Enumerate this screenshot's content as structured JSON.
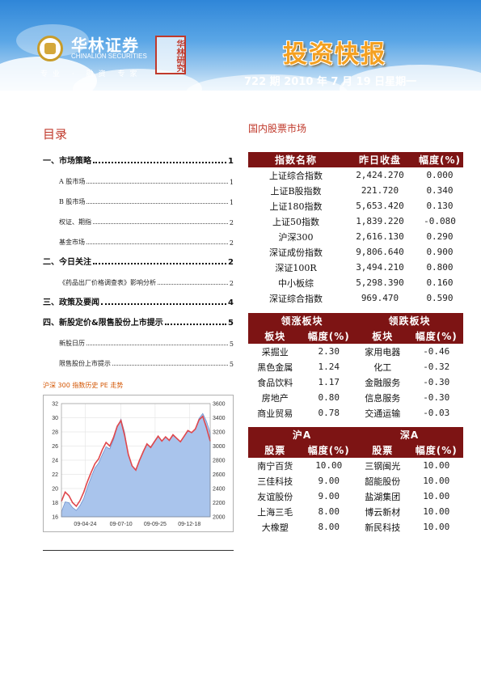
{
  "header": {
    "company_cn": "华林证券",
    "company_en": "CHINALION SECURITIES",
    "slogan": "专业 · 融资 专家",
    "seal_text": "华林研究",
    "publication_title": "投资快报",
    "issue_line": "722 期  2010 年 7 月 19 日星期一"
  },
  "toc": {
    "title": "目录",
    "entries": [
      {
        "label": "一、市场策略",
        "page": "1",
        "level": "main"
      },
      {
        "label": "A 股市场",
        "page": "1",
        "level": "sub"
      },
      {
        "label": "B 股市场",
        "page": "1",
        "level": "sub"
      },
      {
        "label": "权证、期指",
        "page": "2",
        "level": "sub"
      },
      {
        "label": "基金市场",
        "page": "2",
        "level": "sub"
      },
      {
        "label": "二、今日关注",
        "page": "2",
        "level": "main"
      },
      {
        "label": "《药品出厂价格调查表》影响分析",
        "page": "2",
        "level": "sub"
      },
      {
        "label": "三、政策及要闻",
        "page": "4",
        "level": "main"
      },
      {
        "label": "四、新股定价&限售股份上市提示",
        "page": "5",
        "level": "main"
      },
      {
        "label": "新股日历",
        "page": "5",
        "level": "sub"
      },
      {
        "label": "限售股份上市提示",
        "page": "5",
        "level": "sub"
      }
    ]
  },
  "chart_section": {
    "title": "沪深 300 指数历史 PE 走势"
  },
  "chart_data": {
    "type": "line",
    "title": "沪深 300 指数历史 PE 走势",
    "x_tick_labels": [
      "09-04-24",
      "09-07-10",
      "09-09-25",
      "09-12-18"
    ],
    "left_axis": {
      "ylim": [
        16,
        32
      ],
      "ticks": [
        16,
        18,
        20,
        22,
        24,
        26,
        28,
        30,
        32
      ]
    },
    "right_axis": {
      "ylim": [
        2000,
        3600
      ],
      "ticks": [
        2000,
        2200,
        2400,
        2600,
        2800,
        3000,
        3200,
        3400,
        3600
      ]
    },
    "series": [
      {
        "axis": "left",
        "style": "line",
        "color": "#e0474c",
        "values": [
          18.2,
          19.5,
          19.0,
          18.0,
          17.5,
          18.3,
          19.5,
          21.0,
          22.3,
          23.5,
          24.2,
          25.5,
          26.5,
          26.0,
          27.2,
          28.8,
          29.6,
          27.5,
          24.8,
          23.2,
          22.6,
          24.0,
          25.2,
          26.3,
          25.8,
          26.6,
          27.4,
          26.7,
          27.3,
          26.8,
          27.6,
          27.1,
          26.6,
          27.4,
          28.2,
          27.9,
          28.4,
          29.7,
          30.2,
          28.6,
          26.7
        ]
      },
      {
        "axis": "right",
        "style": "area",
        "color": "#a9c4ec",
        "values": [
          2070,
          2210,
          2200,
          2130,
          2090,
          2160,
          2260,
          2420,
          2560,
          2690,
          2760,
          2880,
          2990,
          2960,
          3090,
          3270,
          3380,
          3190,
          2870,
          2720,
          2660,
          2800,
          2930,
          3030,
          2990,
          3070,
          3140,
          3070,
          3130,
          3080,
          3150,
          3110,
          3060,
          3140,
          3210,
          3190,
          3240,
          3390,
          3460,
          3350,
          3190
        ]
      }
    ],
    "grid": true
  },
  "market": {
    "title": "国内股票市场",
    "index_table": {
      "headers": [
        "指数名称",
        "昨日收盘",
        "幅度(%)"
      ],
      "rows": [
        [
          "上证综合指数",
          "2,424.270",
          "0.000"
        ],
        [
          "上证B股指数",
          "221.720",
          "0.340"
        ],
        [
          "上证180指数",
          "5,653.420",
          "0.130"
        ],
        [
          "上证50指数",
          "1,839.220",
          "-0.080"
        ],
        [
          "沪深300",
          "2,616.130",
          "0.290"
        ],
        [
          "深证成份指数",
          "9,806.640",
          "0.900"
        ],
        [
          "深证100R",
          "3,494.210",
          "0.800"
        ],
        [
          "中小板综",
          "5,298.390",
          "0.160"
        ],
        [
          "深证综合指数",
          "969.470",
          "0.590"
        ]
      ]
    },
    "sector_table": {
      "group_headers": [
        "领涨板块",
        "领跌板块"
      ],
      "sub_headers": [
        "板块",
        "幅度(%)",
        "板块",
        "幅度(%)"
      ],
      "rows": [
        [
          "采掘业",
          "2.30",
          "家用电器",
          "-0.46"
        ],
        [
          "黑色金属",
          "1.24",
          "化工",
          "-0.32"
        ],
        [
          "食品饮料",
          "1.17",
          "金融服务",
          "-0.30"
        ],
        [
          "房地产",
          "0.80",
          "信息服务",
          "-0.30"
        ],
        [
          "商业贸易",
          "0.78",
          "交通运输",
          "-0.03"
        ]
      ]
    },
    "top_table": {
      "group_headers": [
        "沪A",
        "深A"
      ],
      "sub_headers": [
        "股票",
        "幅度(%)",
        "股票",
        "幅度(%)"
      ],
      "rows": [
        [
          "南宁百货",
          "10.00",
          "三钢闽光",
          "10.00"
        ],
        [
          "三佳科技",
          "9.00",
          "韶能股份",
          "10.00"
        ],
        [
          "友谊股份",
          "9.00",
          "盐湖集团",
          "10.00"
        ],
        [
          "上海三毛",
          "8.00",
          "博云新材",
          "10.00"
        ],
        [
          "大橡塑",
          "8.00",
          "新民科技",
          "10.00"
        ]
      ]
    }
  }
}
